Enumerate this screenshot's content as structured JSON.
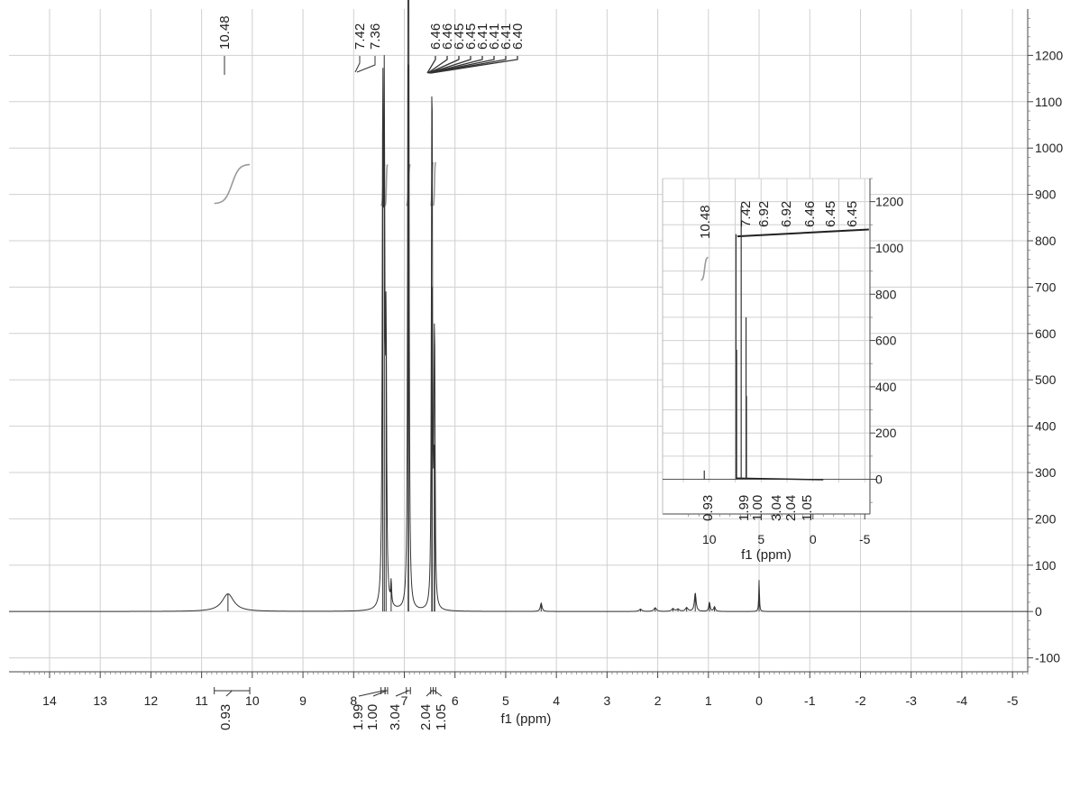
{
  "chart_data": [
    {
      "type": "line",
      "title": "",
      "xlabel": "f1 (ppm)",
      "ylabel": "",
      "xlim": [
        14.8,
        -5.3
      ],
      "ylim": [
        -130,
        1300
      ],
      "x_ticks": [
        14,
        13,
        12,
        11,
        10,
        9,
        8,
        7,
        6,
        5,
        4,
        3,
        2,
        1,
        0,
        -1,
        -2,
        -3,
        -4,
        -5
      ],
      "x_tick_labels": [
        "14",
        "13",
        "12",
        "11",
        "10",
        "9",
        "8",
        "7",
        "6",
        "5",
        "4",
        "3",
        "2",
        "1",
        "0",
        "-1",
        "-2",
        "-3",
        "-4",
        "-5"
      ],
      "y_ticks": [
        -100,
        0,
        100,
        200,
        300,
        400,
        500,
        600,
        700,
        800,
        900,
        1000,
        1100,
        1200
      ],
      "y_tick_labels": [
        "-100",
        "0",
        "100",
        "200",
        "300",
        "400",
        "500",
        "600",
        "700",
        "800",
        "900",
        "1000",
        "1100",
        "1200"
      ],
      "grid": true,
      "peaks": [
        {
          "x": 10.48,
          "y": 38,
          "w": 0.14
        },
        {
          "x": 7.425,
          "y": 1060,
          "w": 0.012
        },
        {
          "x": 7.395,
          "y": 1000,
          "w": 0.012
        },
        {
          "x": 7.36,
          "y": 560,
          "w": 0.012
        },
        {
          "x": 7.26,
          "y": 50,
          "w": 0.01
        },
        {
          "x": 6.925,
          "y": 1180,
          "w": 0.01
        },
        {
          "x": 6.915,
          "y": 1170,
          "w": 0.01
        },
        {
          "x": 6.46,
          "y": 700,
          "w": 0.01
        },
        {
          "x": 6.45,
          "y": 690,
          "w": 0.01
        },
        {
          "x": 6.41,
          "y": 360,
          "w": 0.01
        },
        {
          "x": 6.4,
          "y": 350,
          "w": 0.01
        },
        {
          "x": 4.3,
          "y": 18,
          "w": 0.02
        },
        {
          "x": 2.34,
          "y": 5,
          "w": 0.03
        },
        {
          "x": 2.05,
          "y": 8,
          "w": 0.03
        },
        {
          "x": 1.7,
          "y": 6,
          "w": 0.03
        },
        {
          "x": 1.6,
          "y": 5,
          "w": 0.03
        },
        {
          "x": 1.43,
          "y": 8,
          "w": 0.03
        },
        {
          "x": 1.26,
          "y": 40,
          "w": 0.02
        },
        {
          "x": 0.98,
          "y": 20,
          "w": 0.015
        },
        {
          "x": 0.88,
          "y": 10,
          "w": 0.02
        },
        {
          "x": 0.0,
          "y": 68,
          "w": 0.008
        }
      ],
      "integrals": [
        {
          "from": 10.75,
          "to": 10.05,
          "value": "0.93",
          "curve_bottom": 880,
          "curve_top": 965
        },
        {
          "from": 7.46,
          "to": 7.38,
          "value": "1.99",
          "curve_bottom": 875,
          "curve_top": 965
        },
        {
          "from": 7.38,
          "to": 7.33,
          "value": "1.00",
          "curve_bottom": 875,
          "curve_top": 965
        },
        {
          "from": 6.96,
          "to": 6.88,
          "value": "3.04",
          "curve_bottom": 875,
          "curve_top": 965
        },
        {
          "from": 6.48,
          "to": 6.43,
          "value": "2.04",
          "curve_bottom": 875,
          "curve_top": 970
        },
        {
          "from": 6.43,
          "to": 6.38,
          "value": "1.05",
          "curve_bottom": 875,
          "curve_top": 970
        }
      ],
      "peak_labels": [
        {
          "label": "10.48",
          "x": 10.48
        },
        {
          "label": "7.42",
          "x": 7.42
        },
        {
          "label": "7.36",
          "x": 7.36
        },
        {
          "label": "6.46",
          "x": 6.46
        },
        {
          "label": "6.46",
          "x": 6.46
        },
        {
          "label": "6.45",
          "x": 6.45
        },
        {
          "label": "6.45",
          "x": 6.45
        },
        {
          "label": "6.41",
          "x": 6.41
        },
        {
          "label": "6.41",
          "x": 6.41
        },
        {
          "label": "6.41",
          "x": 6.41
        },
        {
          "label": "6.40",
          "x": 6.4
        }
      ]
    },
    {
      "type": "line",
      "title": "",
      "xlabel": "f1 (ppm)",
      "ylabel": "",
      "xlim": [
        14.5,
        -5.5
      ],
      "ylim": [
        -150,
        1300
      ],
      "x_ticks": [
        10,
        5,
        0,
        -5
      ],
      "x_tick_labels": [
        "10",
        "5",
        "0",
        "-5"
      ],
      "y_ticks": [
        0,
        200,
        400,
        600,
        800,
        1000,
        1200
      ],
      "y_tick_labels": [
        "0",
        "200",
        "400",
        "600",
        "800",
        "1000",
        "1200"
      ],
      "grid": true,
      "peaks": [
        {
          "x": 7.42,
          "y": 1060
        },
        {
          "x": 7.36,
          "y": 560
        },
        {
          "x": 6.92,
          "y": 1180
        },
        {
          "x": 6.45,
          "y": 700
        },
        {
          "x": 6.41,
          "y": 360
        },
        {
          "x": 10.48,
          "y": 38
        }
      ],
      "integrals": [
        {
          "x": 10.48,
          "value": "0.93",
          "curve_bottom": 860,
          "curve_top": 960
        },
        {
          "x": 7.4,
          "value": "1.99"
        },
        {
          "x": 6.92,
          "value": "1.00"
        },
        {
          "x": 6.45,
          "value": "3.04"
        },
        {
          "x": 6.4,
          "value": "2.04"
        },
        {
          "x": 6.38,
          "value": "1.05"
        }
      ],
      "peak_labels": [
        {
          "label": "10.48",
          "x": 10.48
        },
        {
          "label": "7.42",
          "x": 7.42
        },
        {
          "label": "6.92",
          "x": 6.92
        },
        {
          "label": "6.92",
          "x": 6.92
        },
        {
          "label": "6.46",
          "x": 6.46
        },
        {
          "label": "6.45",
          "x": 6.45
        },
        {
          "label": "6.45",
          "x": 6.45
        }
      ]
    }
  ]
}
